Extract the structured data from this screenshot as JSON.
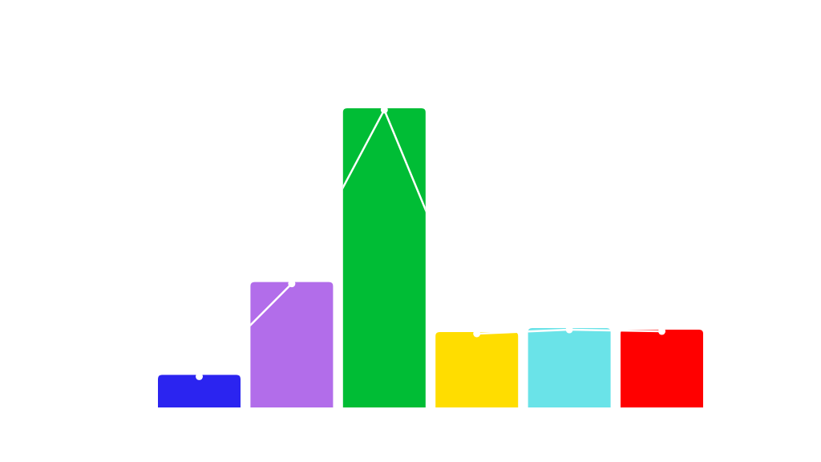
{
  "chart_data": {
    "type": "bar",
    "categories": [
      "",
      "",
      "",
      "",
      "",
      ""
    ],
    "values": [
      41,
      158,
      377,
      95,
      100,
      98
    ],
    "ylim": [
      0,
      380
    ],
    "grid": false,
    "legend": "none",
    "colors": [
      "#2b24f0",
      "#b26dea",
      "#00bd35",
      "#ffdd00",
      "#6ae3e8",
      "#ff0000"
    ],
    "line_overlay": {
      "color": "#ffffff",
      "values": [
        41,
        158,
        377,
        95,
        100,
        98
      ]
    }
  }
}
